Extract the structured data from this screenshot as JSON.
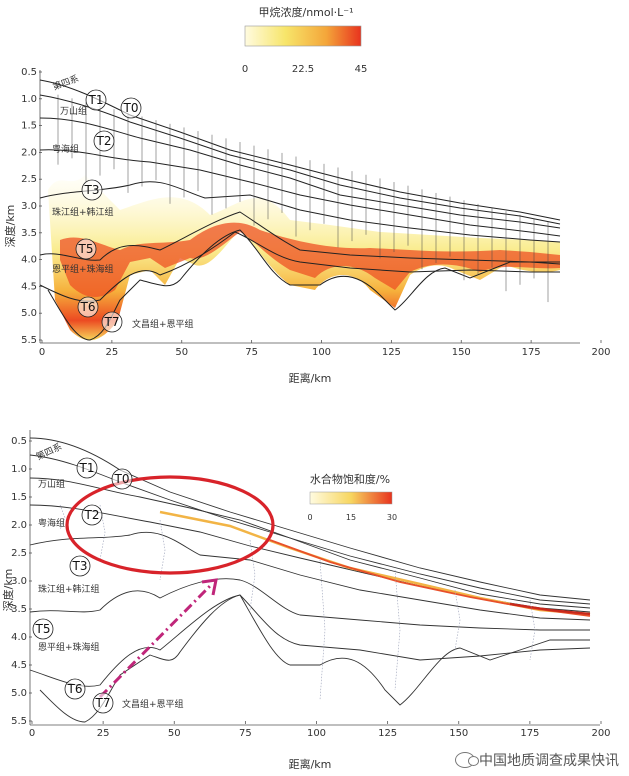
{
  "top_panel": {
    "colorbar_title": "甲烷浓度/nmol·L⁻¹",
    "colorbar_ticks": [
      "0",
      "22.5",
      "45"
    ],
    "colorbar_colors": [
      "#fffbe0",
      "#f7e56a",
      "#f4a63a",
      "#e8331e"
    ],
    "ylabel": "深度/km",
    "xlabel": "距离/km",
    "x_ticks": [
      "0",
      "25",
      "50",
      "75",
      "100",
      "125",
      "150",
      "175",
      "200"
    ],
    "y_ticks": [
      "0.5",
      "1.0",
      "1.5",
      "2.0",
      "2.5",
      "3.0",
      "3.5",
      "4.0",
      "4.5",
      "5.0",
      "5.5"
    ],
    "horizons": [
      "T0",
      "T1",
      "T2",
      "T3",
      "T5",
      "T6",
      "T7"
    ],
    "units": [
      "第四系",
      "万山组",
      "粤海组",
      "珠江组+韩江组",
      "恩平组+珠海组",
      "文昌组+恩平组"
    ]
  },
  "bottom_panel": {
    "colorbar_title": "水合物饱和度/%",
    "colorbar_ticks": [
      "0",
      "15",
      "30"
    ],
    "colorbar_colors": [
      "#fffbe0",
      "#f7d660",
      "#e8331e"
    ],
    "ylabel": "深度/km",
    "xlabel": "距离/km",
    "x_ticks": [
      "0",
      "25",
      "50",
      "75",
      "100",
      "125",
      "150",
      "175",
      "200"
    ],
    "y_ticks": [
      "0.5",
      "1.0",
      "1.5",
      "2.0",
      "2.5",
      "3.0",
      "3.5",
      "4.0",
      "4.5",
      "5.0",
      "5.5"
    ],
    "horizons": [
      "T0",
      "T1",
      "T2",
      "T3",
      "T5",
      "T6",
      "T7"
    ],
    "units": [
      "第四系",
      "万山组",
      "粤海组",
      "珠江组+韩江组",
      "恩平组+珠海组",
      "文昌组+恩平组"
    ],
    "highlight_color": "#d8232a",
    "arrow_color": "#c0267a"
  },
  "watermark": "中国地质调查成果快讯"
}
